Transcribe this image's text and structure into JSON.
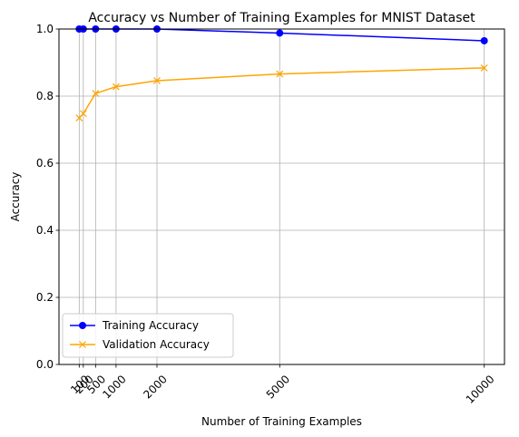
{
  "chart_data": {
    "type": "line",
    "title": "Accuracy vs Number of Training Examples for MNIST Dataset",
    "xlabel": "Number of Training Examples",
    "ylabel": "Accuracy",
    "x": [
      100,
      200,
      500,
      1000,
      2000,
      5000,
      10000
    ],
    "x_tick_labels": [
      "100",
      "200",
      "500",
      "1000",
      "2000",
      "5000",
      "10000"
    ],
    "y_ticks": [
      0.0,
      0.2,
      0.4,
      0.6,
      0.8,
      1.0
    ],
    "y_tick_labels": [
      "0.0",
      "0.2",
      "0.4",
      "0.6",
      "0.8",
      "1.0"
    ],
    "xlim": [
      -395,
      10495
    ],
    "ylim": [
      0.0,
      1.0
    ],
    "grid": true,
    "legend_position": "lower-left",
    "series": [
      {
        "name": "Training Accuracy",
        "color": "#0000ff",
        "marker": "circle",
        "values": [
          1.0,
          1.0,
          1.0,
          1.0,
          1.0,
          0.988,
          0.965
        ]
      },
      {
        "name": "Validation Accuracy",
        "color": "#ffa500",
        "marker": "x",
        "values": [
          0.735,
          0.748,
          0.808,
          0.828,
          0.846,
          0.866,
          0.884
        ]
      }
    ]
  }
}
